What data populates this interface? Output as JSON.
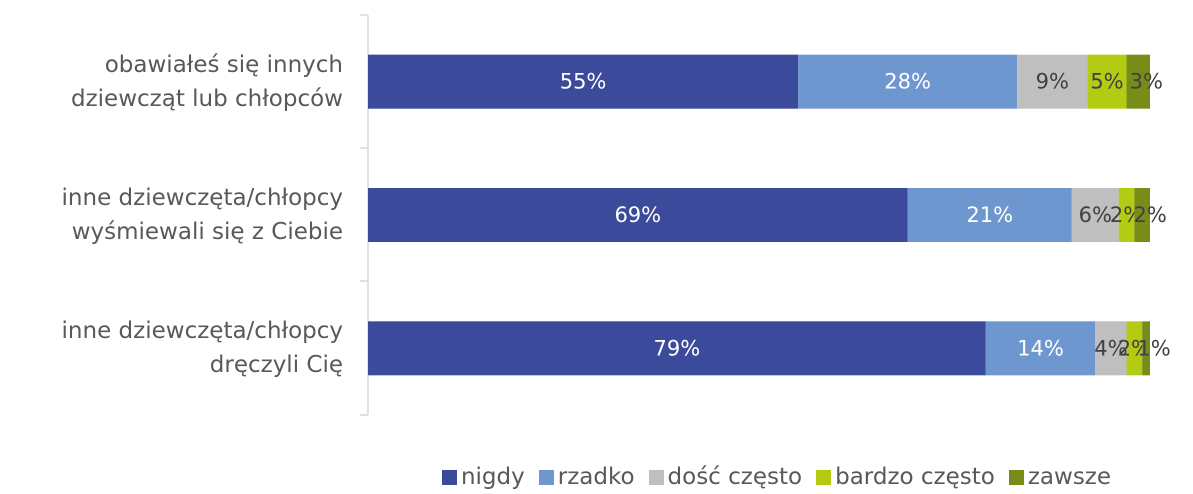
{
  "chart_data": {
    "type": "stacked-bar-horizontal",
    "categories": [
      "obawiałeś się innych\ndziewcząt lub chłopców",
      "inne dziewczęta/chłopcy\nwyśmiewali się z Ciebie",
      "inne dziewczęta/chłopcy\ndręczyli Cię"
    ],
    "xlim": [
      0,
      100
    ],
    "legend": "bottom",
    "series": [
      {
        "name": "nigdy",
        "color": "#3b4a9a",
        "values": [
          55,
          69,
          79
        ],
        "value_labels": [
          "55%",
          "69%",
          "79%"
        ]
      },
      {
        "name": "rzadko",
        "color": "#6e96cf",
        "values": [
          28,
          21,
          14
        ],
        "value_labels": [
          "28%",
          "21%",
          "14%"
        ]
      },
      {
        "name": "dość często",
        "color": "#bfbfbf",
        "values": [
          9,
          6,
          4
        ],
        "value_labels": [
          "9%",
          "6%",
          "4%"
        ]
      },
      {
        "name": "bardzo często",
        "color": "#b4cb14",
        "values": [
          5,
          2,
          2
        ],
        "value_labels": [
          "5%",
          "2%",
          "2%"
        ]
      },
      {
        "name": "zawsze",
        "color": "#788d17",
        "values": [
          3,
          2,
          1
        ],
        "value_labels": [
          "3%",
          "2%",
          "1%"
        ]
      }
    ]
  }
}
